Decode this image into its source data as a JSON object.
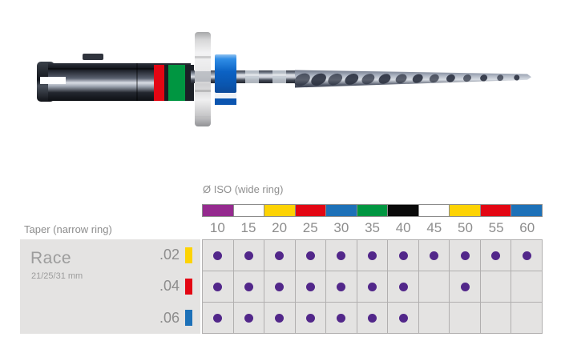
{
  "palette": {
    "narrow_ring_red": "#e30613",
    "narrow_ring_green": "#009641",
    "wide_ring_blue": "#1266cd",
    "dot_purple": "#52278a",
    "panel_gray": "#e4e3e2",
    "grid_line_gray": "#b1afaf",
    "text_gray": "#8d8d8d"
  },
  "chart_data": {
    "type": "table",
    "title": "Ø ISO (wide ring)",
    "row_header_title": "Taper (narrow ring)",
    "product": {
      "name": "Race",
      "lengths": "21/25/31 mm"
    },
    "dot_hex": "#52278a",
    "columns": [
      {
        "size": "10",
        "ring_hex": "#952a8f"
      },
      {
        "size": "15",
        "ring_hex": "#ffffff"
      },
      {
        "size": "20",
        "ring_hex": "#fdd303"
      },
      {
        "size": "25",
        "ring_hex": "#e30613"
      },
      {
        "size": "30",
        "ring_hex": "#1d71b8"
      },
      {
        "size": "35",
        "ring_hex": "#009641"
      },
      {
        "size": "40",
        "ring_hex": "#0a0a0a"
      },
      {
        "size": "45",
        "ring_hex": "#ffffff"
      },
      {
        "size": "50",
        "ring_hex": "#fdd303"
      },
      {
        "size": "55",
        "ring_hex": "#e30613"
      },
      {
        "size": "60",
        "ring_hex": "#1d71b8"
      }
    ],
    "rows": [
      {
        "taper": ".02",
        "swatch_hex": "#fdd303",
        "available": [
          "10",
          "15",
          "20",
          "25",
          "30",
          "35",
          "40",
          "45",
          "50",
          "55",
          "60"
        ]
      },
      {
        "taper": ".04",
        "swatch_hex": "#e30613",
        "available": [
          "10",
          "15",
          "20",
          "25",
          "30",
          "35",
          "40",
          "50"
        ]
      },
      {
        "taper": ".06",
        "swatch_hex": "#1d71b8",
        "available": [
          "10",
          "15",
          "20",
          "25",
          "30",
          "35",
          "40"
        ]
      }
    ]
  }
}
